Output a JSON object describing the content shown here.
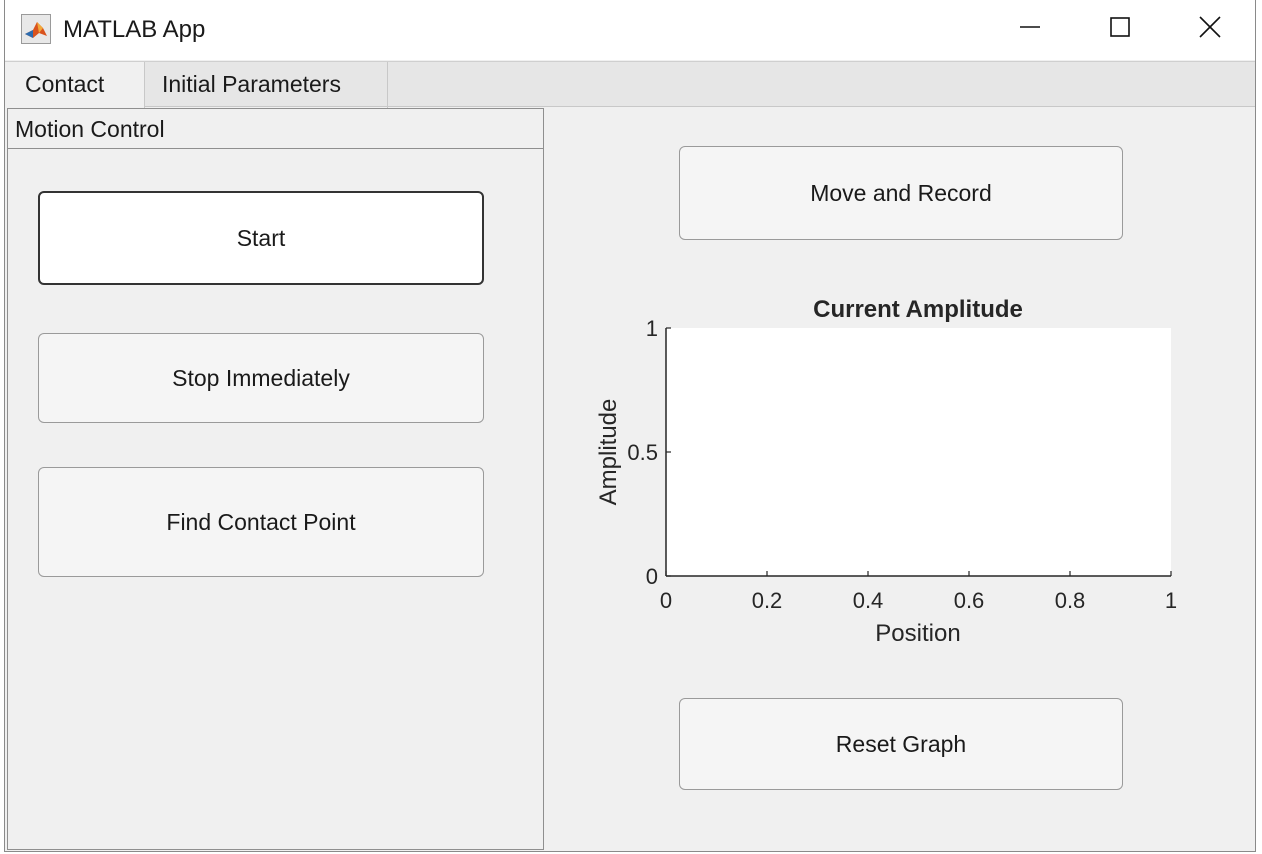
{
  "window": {
    "title": "MATLAB App",
    "icon": "matlab-logo-icon",
    "controls": {
      "minimize_icon": "minimize-icon",
      "maximize_icon": "maximize-icon",
      "close_icon": "close-icon"
    }
  },
  "tabs": [
    {
      "label": "Contact",
      "selected": true
    },
    {
      "label": "Initial Parameters",
      "selected": false
    }
  ],
  "motion_panel": {
    "title": "Motion Control",
    "buttons": {
      "start": "Start",
      "stop": "Stop Immediately",
      "find_contact": "Find Contact Point"
    }
  },
  "right_panel": {
    "move_record_label": "Move and Record",
    "reset_graph_label": "Reset Graph"
  },
  "chart_data": {
    "type": "line",
    "title": "Current Amplitude",
    "xlabel": "Position",
    "ylabel": "Amplitude",
    "xlim": [
      0,
      1
    ],
    "ylim": [
      0,
      1
    ],
    "xticks": [
      "0",
      "0.2",
      "0.4",
      "0.6",
      "0.8",
      "1"
    ],
    "yticks": [
      "0",
      "0.5",
      "1"
    ],
    "series": [],
    "grid": false
  },
  "colors": {
    "window_bg": "#f0f0f0",
    "axes_bg": "#ffffff",
    "matlab_orange": "#d9531e"
  }
}
